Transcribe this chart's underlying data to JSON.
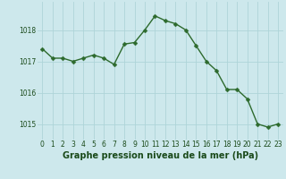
{
  "x": [
    0,
    1,
    2,
    3,
    4,
    5,
    6,
    7,
    8,
    9,
    10,
    11,
    12,
    13,
    14,
    15,
    16,
    17,
    18,
    19,
    20,
    21,
    22,
    23
  ],
  "y": [
    1017.4,
    1017.1,
    1017.1,
    1017.0,
    1017.1,
    1017.2,
    1017.1,
    1016.9,
    1017.55,
    1017.6,
    1018.0,
    1018.45,
    1018.3,
    1018.2,
    1018.0,
    1017.5,
    1017.0,
    1016.7,
    1016.1,
    1016.1,
    1015.8,
    1015.0,
    1014.9,
    1015.0
  ],
  "line_color": "#2d6a2d",
  "marker": "D",
  "marker_size": 2.5,
  "line_width": 1.0,
  "bg_color": "#cde8ec",
  "grid_color": "#aed4d8",
  "xlabel": "Graphe pression niveau de la mer (hPa)",
  "xlabel_fontsize": 7,
  "yticks": [
    1015,
    1016,
    1017,
    1018
  ],
  "xtick_labels": [
    "0",
    "1",
    "2",
    "3",
    "4",
    "5",
    "6",
    "7",
    "8",
    "9",
    "10",
    "11",
    "12",
    "13",
    "14",
    "15",
    "16",
    "17",
    "18",
    "19",
    "20",
    "21",
    "22",
    "23"
  ],
  "ylim": [
    1014.5,
    1018.9
  ],
  "xlim": [
    -0.5,
    23.5
  ],
  "tick_fontsize": 5.5,
  "title_color": "#1a4a1a"
}
